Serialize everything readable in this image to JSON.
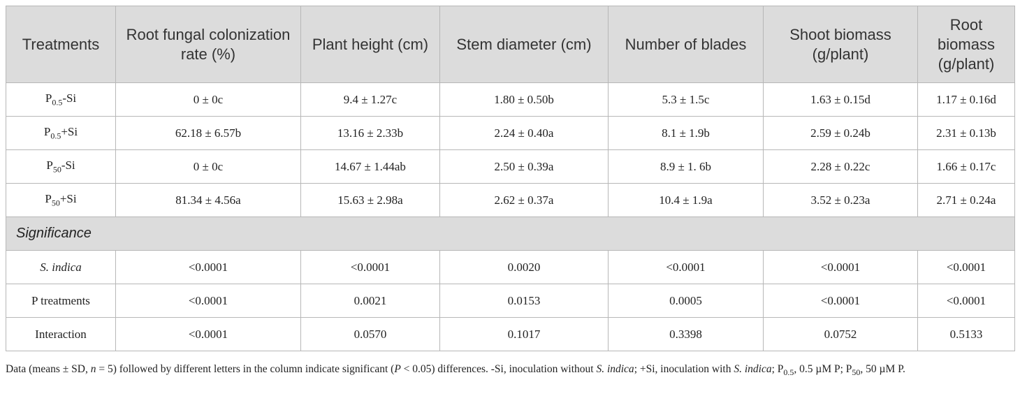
{
  "table": {
    "header": [
      "Treatments",
      "Root fungal colonization rate (%)",
      "Plant height (cm)",
      "Stem diameter (cm)",
      "Number of blades",
      "Shoot biomass (g/plant)",
      "Root biomass (g/plant)"
    ],
    "rows": [
      [
        {
          "base": "P",
          "sub": "0.5",
          "rest": "-Si"
        },
        "0 ± 0c",
        "9.4 ± 1.27c",
        "1.80 ± 0.50b",
        "5.3 ± 1.5c",
        "1.63 ± 0.15d",
        "1.17 ± 0.16d"
      ],
      [
        {
          "base": "P",
          "sub": "0.5",
          "rest": "+Si"
        },
        "62.18 ± 6.57b",
        "13.16 ± 2.33b",
        "2.24 ± 0.40a",
        "8.1 ± 1.9b",
        "2.59 ± 0.24b",
        "2.31 ± 0.13b"
      ],
      [
        {
          "base": "P",
          "sub": "50",
          "rest": "-Si"
        },
        "0 ± 0c",
        "14.67 ± 1.44ab",
        "2.50 ± 0.39a",
        "8.9 ± 1. 6b",
        "2.28 ± 0.22c",
        "1.66 ± 0.17c"
      ],
      [
        {
          "base": "P",
          "sub": "50",
          "rest": "+Si"
        },
        "81.34 ± 4.56a",
        "15.63 ± 2.98a",
        "2.62 ± 0.37a",
        "10.4 ± 1.9a",
        "3.52 ± 0.23a",
        "2.71 ± 0.24a"
      ]
    ],
    "section": "Significance",
    "significance_rows": [
      [
        "S. indica",
        "<0.0001",
        "<0.0001",
        "0.0020",
        "<0.0001",
        "<0.0001",
        "<0.0001"
      ],
      [
        "P treatments",
        "<0.0001",
        "0.0021",
        "0.0153",
        "0.0005",
        "<0.0001",
        "<0.0001"
      ],
      [
        "Interaction",
        "<0.0001",
        "0.0570",
        "0.1017",
        "0.3398",
        "0.0752",
        "0.5133"
      ]
    ]
  },
  "footnote": [
    {
      "text": "Data (means ± SD, "
    },
    {
      "text": "n",
      "italic": true
    },
    {
      "text": " = 5) followed by different letters in the column indicate significant ("
    },
    {
      "text": "P",
      "italic": true
    },
    {
      "text": " < 0.05) differences. -Si, inoculation without "
    },
    {
      "text": "S. indica",
      "italic": true
    },
    {
      "text": "; +Si, inoculation with "
    },
    {
      "text": "S. indica",
      "italic": true
    },
    {
      "text": "; P"
    },
    {
      "text": "0.5",
      "sub": true
    },
    {
      "text": ", 0.5 µM P; P"
    },
    {
      "text": "50",
      "sub": true
    },
    {
      "text": ", 50 µM P."
    }
  ]
}
